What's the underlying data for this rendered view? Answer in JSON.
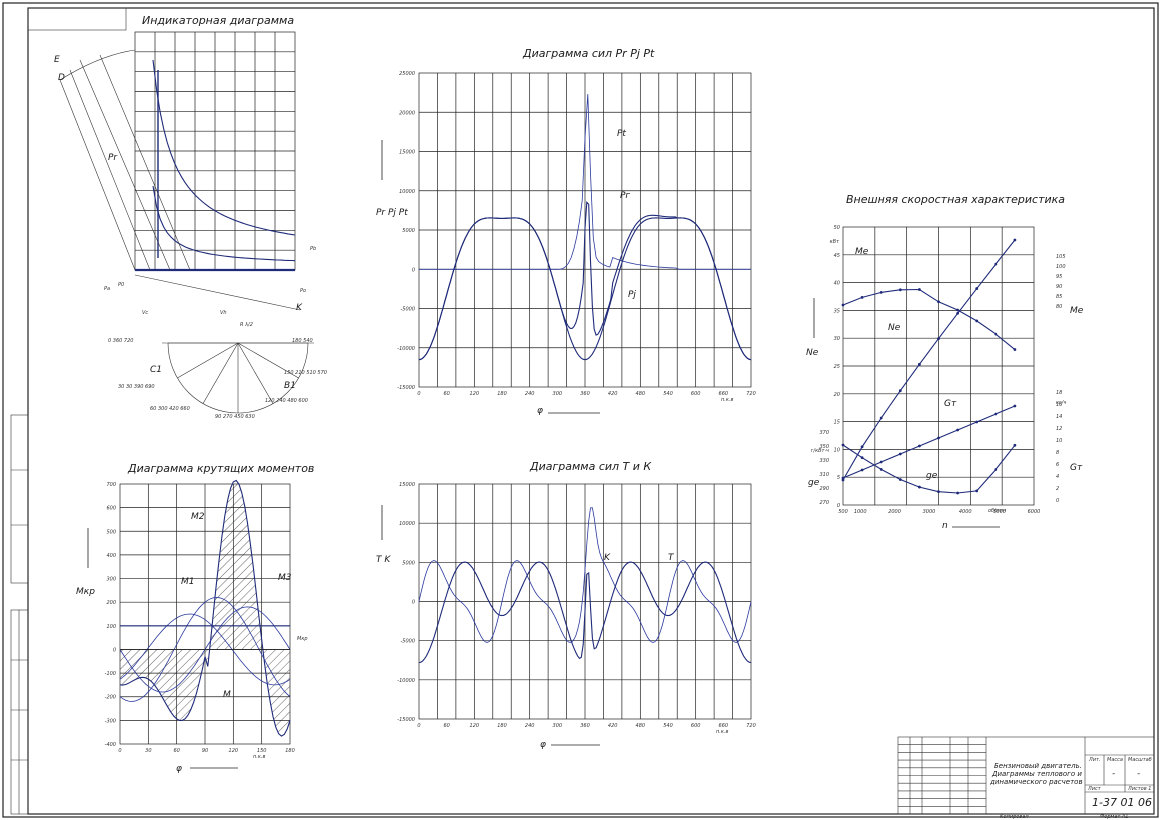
{
  "titles": {
    "indicator": "Индикаторная диаграмма",
    "forces_pr": "Диаграмма сил  Pr Pj Pt",
    "forces_tk": "Диаграмма сил Т и К",
    "torque": "Диаграмма крутящих моментов",
    "speed": "Внешняя скоростная характеристика"
  },
  "forces_pr": {
    "y_ticks": [
      "25000",
      "20000",
      "15000",
      "10000",
      "5000",
      "0",
      "-5000",
      "-10000",
      "-15000"
    ],
    "x_ticks": [
      "0",
      "60",
      "120",
      "180",
      "240",
      "300",
      "360",
      "420",
      "480",
      "540",
      "600",
      "660",
      "720"
    ],
    "x_unit": "п.к.в",
    "x_label": "φ",
    "y_label": "Pr Pj Pt",
    "curve_labels": [
      "Pt",
      "Pг",
      "Pj"
    ]
  },
  "forces_tk": {
    "y_ticks": [
      "15000",
      "10000",
      "5000",
      "0",
      "-5000",
      "-10000",
      "-15000"
    ],
    "x_ticks": [
      "0",
      "60",
      "120",
      "180",
      "240",
      "300",
      "360",
      "420",
      "480",
      "540",
      "600",
      "660",
      "720"
    ],
    "x_label": "φ",
    "y_label": "T K",
    "curve_labels": [
      "K",
      "T"
    ]
  },
  "torque": {
    "y_ticks": [
      "700",
      "600",
      "500",
      "400",
      "300",
      "200",
      "100",
      "0",
      "-100",
      "-200",
      "-300",
      "-400"
    ],
    "x_ticks": [
      "0",
      "30",
      "60",
      "90",
      "120",
      "150",
      "180"
    ],
    "x_unit": "п.к.в",
    "x_label": "φ",
    "y_label": "Мкр",
    "mean_label": "Мкр",
    "curve_labels": [
      "М2",
      "М1",
      "М",
      "М3"
    ]
  },
  "speed": {
    "x_ticks": [
      "500",
      "1000",
      "2000",
      "3000",
      "4000",
      "5000",
      "6000"
    ],
    "x_unit": "об/мин",
    "x_label": "n",
    "ne_ticks": [
      "50",
      "45",
      "40",
      "35",
      "30",
      "25",
      "20",
      "15",
      "10",
      "5",
      "0"
    ],
    "ne_unit": "кВт",
    "me_ticks": [
      "105",
      "100",
      "95",
      "90",
      "85",
      "80"
    ],
    "gt_ticks": [
      "18",
      "16",
      "14",
      "12",
      "10",
      "8",
      "6",
      "4",
      "2",
      "0"
    ],
    "gt_unit": "кг/ч",
    "ge_ticks": [
      "370",
      "350",
      "330",
      "310",
      "290",
      "270"
    ],
    "ge_unit": "г/кВт·ч",
    "labels": {
      "ne": "Ne",
      "me": "Me",
      "gt": "Gт",
      "ge": "ge",
      "ne_curve": "Ne",
      "me_curve": "Me",
      "gt_curve": "Gт",
      "ge_curve": "ge"
    }
  },
  "indicator": {
    "point_labels": [
      "E",
      "D",
      "C",
      "B1",
      "K",
      "C1",
      "B1"
    ],
    "dims": [
      "Vc",
      "Vh",
      "R λ/2",
      "Pr",
      "Pa",
      "P0",
      "Po",
      "Pb"
    ],
    "angle_labels": [
      "0 360 720",
      "30 30 390 690",
      "60 300 420 660",
      "90 270 450 630",
      "120 240 480 600",
      "150 210 510 570",
      "180 540"
    ]
  },
  "stamp": {
    "title_lines": [
      "Бензиновый двигатель.",
      "Диаграммы теплового и",
      "динамического расчетов"
    ],
    "code": "1-37 01 06",
    "lit": "Лит.",
    "mass": "Масса",
    "scale": "Масштаб",
    "sheet": "Лист",
    "sheets": "Листов 1",
    "dash1": "-",
    "dash2": "-",
    "copied": "Копировал",
    "format": "Формат A1"
  }
}
